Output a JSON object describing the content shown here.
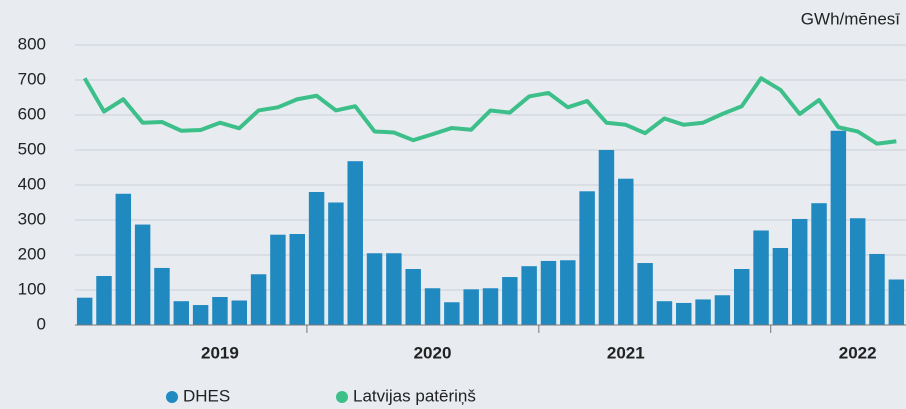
{
  "chart_data": {
    "type": "combo",
    "unit": "GWh/mēnesī",
    "categories": [
      null,
      null,
      null,
      null,
      null,
      null,
      null,
      "2019",
      null,
      null,
      null,
      null,
      null,
      null,
      null,
      null,
      null,
      null,
      "2020",
      null,
      null,
      null,
      null,
      null,
      null,
      null,
      null,
      null,
      "2021",
      null,
      null,
      null,
      null,
      null,
      null,
      null,
      null,
      null,
      null,
      null,
      "2022",
      null,
      null
    ],
    "series": [
      {
        "name": "DHES",
        "kind": "bar",
        "color": "#1f89c0",
        "values": [
          78,
          140,
          375,
          287,
          163,
          68,
          57,
          80,
          70,
          145,
          258,
          260,
          380,
          350,
          468,
          205,
          205,
          160,
          105,
          65,
          102,
          105,
          137,
          168,
          183,
          185,
          382,
          500,
          418,
          177,
          68,
          63,
          73,
          85,
          160,
          270,
          220,
          303,
          348,
          555,
          305,
          203,
          130
        ]
      },
      {
        "name": "Latvijas patēriņš",
        "kind": "line",
        "color": "#3dbf8a",
        "values": [
          705,
          610,
          645,
          578,
          580,
          555,
          557,
          578,
          562,
          613,
          622,
          645,
          655,
          613,
          625,
          553,
          550,
          528,
          545,
          563,
          558,
          613,
          607,
          653,
          663,
          622,
          640,
          578,
          572,
          548,
          590,
          572,
          578,
          603,
          625,
          705,
          672,
          603,
          643,
          565,
          553,
          518,
          525
        ]
      }
    ],
    "ylim": [
      0,
      800
    ],
    "yticks": [
      0,
      100,
      200,
      300,
      400,
      500,
      600,
      700,
      800
    ],
    "grid": true
  }
}
